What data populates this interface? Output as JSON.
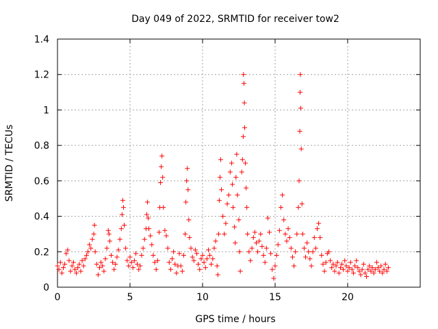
{
  "chart_data": {
    "type": "scatter",
    "title": "Day 049 of 2022, SRMTID for receiver tow2",
    "xlabel": "GPS time / hours",
    "ylabel": "SRMTID / TECUs",
    "xlim": [
      0,
      25
    ],
    "ylim": [
      0,
      1.4
    ],
    "xticks": [
      0,
      5,
      10,
      15,
      20
    ],
    "yticks": [
      0,
      0.2,
      0.4,
      0.6,
      0.8,
      1,
      1.2,
      1.4
    ],
    "xtick_labels": [
      "0",
      "5",
      "10",
      "15",
      "20"
    ],
    "ytick_labels": [
      "0",
      "0.2",
      "0.4",
      "0.6",
      "0.8",
      "1",
      "1.2",
      "1.4"
    ],
    "grid": true,
    "marker": "+",
    "color": "#ff0000",
    "series": [
      {
        "name": "SRMTID",
        "points": [
          [
            0.0,
            0.12
          ],
          [
            0.1,
            0.1
          ],
          [
            0.2,
            0.14
          ],
          [
            0.3,
            0.08
          ],
          [
            0.4,
            0.11
          ],
          [
            0.5,
            0.13
          ],
          [
            0.6,
            0.19
          ],
          [
            0.7,
            0.21
          ],
          [
            0.8,
            0.15
          ],
          [
            0.9,
            0.09
          ],
          [
            1.0,
            0.12
          ],
          [
            1.1,
            0.14
          ],
          [
            1.2,
            0.1
          ],
          [
            1.3,
            0.08
          ],
          [
            1.4,
            0.11
          ],
          [
            1.5,
            0.13
          ],
          [
            1.6,
            0.09
          ],
          [
            1.7,
            0.15
          ],
          [
            1.8,
            0.12
          ],
          [
            1.9,
            0.16
          ],
          [
            2.0,
            0.18
          ],
          [
            2.1,
            0.2
          ],
          [
            2.2,
            0.24
          ],
          [
            2.3,
            0.22
          ],
          [
            2.4,
            0.27
          ],
          [
            2.5,
            0.3
          ],
          [
            2.55,
            0.35
          ],
          [
            2.6,
            0.2
          ],
          [
            2.7,
            0.13
          ],
          [
            2.8,
            0.07
          ],
          [
            2.9,
            0.11
          ],
          [
            3.0,
            0.14
          ],
          [
            3.1,
            0.12
          ],
          [
            3.2,
            0.09
          ],
          [
            3.3,
            0.16
          ],
          [
            3.4,
            0.22
          ],
          [
            3.5,
            0.32
          ],
          [
            3.55,
            0.3
          ],
          [
            3.6,
            0.26
          ],
          [
            3.7,
            0.18
          ],
          [
            3.8,
            0.14
          ],
          [
            3.9,
            0.1
          ],
          [
            4.0,
            0.13
          ],
          [
            4.1,
            0.17
          ],
          [
            4.2,
            0.21
          ],
          [
            4.3,
            0.27
          ],
          [
            4.4,
            0.33
          ],
          [
            4.45,
            0.41
          ],
          [
            4.5,
            0.49
          ],
          [
            4.55,
            0.45
          ],
          [
            4.6,
            0.35
          ],
          [
            4.7,
            0.22
          ],
          [
            4.8,
            0.15
          ],
          [
            4.9,
            0.12
          ],
          [
            5.0,
            0.17
          ],
          [
            5.1,
            0.14
          ],
          [
            5.2,
            0.11
          ],
          [
            5.3,
            0.15
          ],
          [
            5.4,
            0.19
          ],
          [
            5.5,
            0.13
          ],
          [
            5.6,
            0.1
          ],
          [
            5.7,
            0.12
          ],
          [
            5.8,
            0.18
          ],
          [
            5.9,
            0.22
          ],
          [
            6.0,
            0.27
          ],
          [
            6.1,
            0.33
          ],
          [
            6.15,
            0.41
          ],
          [
            6.2,
            0.48
          ],
          [
            6.25,
            0.39
          ],
          [
            6.3,
            0.33
          ],
          [
            6.4,
            0.29
          ],
          [
            6.5,
            0.24
          ],
          [
            6.6,
            0.18
          ],
          [
            6.7,
            0.14
          ],
          [
            6.8,
            0.1
          ],
          [
            6.9,
            0.15
          ],
          [
            7.0,
            0.31
          ],
          [
            7.05,
            0.45
          ],
          [
            7.1,
            0.59
          ],
          [
            7.15,
            0.68
          ],
          [
            7.2,
            0.74
          ],
          [
            7.25,
            0.62
          ],
          [
            7.3,
            0.45
          ],
          [
            7.4,
            0.32
          ],
          [
            7.5,
            0.29
          ],
          [
            7.6,
            0.22
          ],
          [
            7.7,
            0.14
          ],
          [
            7.8,
            0.1
          ],
          [
            7.9,
            0.16
          ],
          [
            8.0,
            0.2
          ],
          [
            8.1,
            0.13
          ],
          [
            8.2,
            0.08
          ],
          [
            8.3,
            0.12
          ],
          [
            8.4,
            0.19
          ],
          [
            8.5,
            0.12
          ],
          [
            8.6,
            0.09
          ],
          [
            8.7,
            0.18
          ],
          [
            8.8,
            0.3
          ],
          [
            8.85,
            0.48
          ],
          [
            8.9,
            0.6
          ],
          [
            8.95,
            0.67
          ],
          [
            9.0,
            0.55
          ],
          [
            9.05,
            0.38
          ],
          [
            9.1,
            0.28
          ],
          [
            9.2,
            0.22
          ],
          [
            9.3,
            0.17
          ],
          [
            9.4,
            0.15
          ],
          [
            9.5,
            0.21
          ],
          [
            9.6,
            0.19
          ],
          [
            9.7,
            0.13
          ],
          [
            9.8,
            0.1
          ],
          [
            9.9,
            0.16
          ],
          [
            10.0,
            0.18
          ],
          [
            10.1,
            0.14
          ],
          [
            10.2,
            0.11
          ],
          [
            10.3,
            0.16
          ],
          [
            10.4,
            0.21
          ],
          [
            10.5,
            0.18
          ],
          [
            10.6,
            0.13
          ],
          [
            10.7,
            0.16
          ],
          [
            10.8,
            0.22
          ],
          [
            10.9,
            0.26
          ],
          [
            11.0,
            0.12
          ],
          [
            11.05,
            0.07
          ],
          [
            11.1,
            0.3
          ],
          [
            11.15,
            0.49
          ],
          [
            11.2,
            0.62
          ],
          [
            11.25,
            0.72
          ],
          [
            11.3,
            0.55
          ],
          [
            11.4,
            0.4
          ],
          [
            11.5,
            0.3
          ],
          [
            11.6,
            0.36
          ],
          [
            11.7,
            0.47
          ],
          [
            11.8,
            0.52
          ],
          [
            11.9,
            0.65
          ],
          [
            12.0,
            0.7
          ],
          [
            12.05,
            0.58
          ],
          [
            12.1,
            0.45
          ],
          [
            12.2,
            0.34
          ],
          [
            12.25,
            0.25
          ],
          [
            12.3,
            0.62
          ],
          [
            12.35,
            0.75
          ],
          [
            12.4,
            0.52
          ],
          [
            12.5,
            0.38
          ],
          [
            12.55,
            0.2
          ],
          [
            12.6,
            0.09
          ],
          [
            12.7,
            0.65
          ],
          [
            12.75,
            0.72
          ],
          [
            12.8,
            0.85
          ],
          [
            12.82,
            1.2
          ],
          [
            12.85,
            1.15
          ],
          [
            12.88,
            1.04
          ],
          [
            12.9,
            0.9
          ],
          [
            12.95,
            0.7
          ],
          [
            13.0,
            0.56
          ],
          [
            13.05,
            0.45
          ],
          [
            13.1,
            0.3
          ],
          [
            13.2,
            0.2
          ],
          [
            13.3,
            0.15
          ],
          [
            13.4,
            0.22
          ],
          [
            13.5,
            0.28
          ],
          [
            13.6,
            0.31
          ],
          [
            13.7,
            0.25
          ],
          [
            13.8,
            0.2
          ],
          [
            13.9,
            0.26
          ],
          [
            14.0,
            0.3
          ],
          [
            14.1,
            0.23
          ],
          [
            14.2,
            0.18
          ],
          [
            14.3,
            0.14
          ],
          [
            14.4,
            0.22
          ],
          [
            14.5,
            0.39
          ],
          [
            14.6,
            0.31
          ],
          [
            14.7,
            0.19
          ],
          [
            14.8,
            0.1
          ],
          [
            14.9,
            0.05
          ],
          [
            15.0,
            0.12
          ],
          [
            15.1,
            0.18
          ],
          [
            15.2,
            0.24
          ],
          [
            15.3,
            0.32
          ],
          [
            15.4,
            0.45
          ],
          [
            15.5,
            0.52
          ],
          [
            15.6,
            0.38
          ],
          [
            15.7,
            0.3
          ],
          [
            15.8,
            0.26
          ],
          [
            15.9,
            0.33
          ],
          [
            16.0,
            0.28
          ],
          [
            16.1,
            0.22
          ],
          [
            16.2,
            0.17
          ],
          [
            16.3,
            0.12
          ],
          [
            16.4,
            0.2
          ],
          [
            16.5,
            0.3
          ],
          [
            16.6,
            0.45
          ],
          [
            16.65,
            0.6
          ],
          [
            16.7,
            0.88
          ],
          [
            16.72,
            1.1
          ],
          [
            16.74,
            1.2
          ],
          [
            16.76,
            1.01
          ],
          [
            16.8,
            0.78
          ],
          [
            16.85,
            0.47
          ],
          [
            16.9,
            0.3
          ],
          [
            17.0,
            0.22
          ],
          [
            17.1,
            0.17
          ],
          [
            17.2,
            0.25
          ],
          [
            17.3,
            0.2
          ],
          [
            17.4,
            0.16
          ],
          [
            17.5,
            0.12
          ],
          [
            17.6,
            0.2
          ],
          [
            17.7,
            0.28
          ],
          [
            17.8,
            0.22
          ],
          [
            17.9,
            0.33
          ],
          [
            18.0,
            0.36
          ],
          [
            18.1,
            0.28
          ],
          [
            18.2,
            0.18
          ],
          [
            18.3,
            0.13
          ],
          [
            18.4,
            0.09
          ],
          [
            18.5,
            0.14
          ],
          [
            18.6,
            0.19
          ],
          [
            18.7,
            0.2
          ],
          [
            18.8,
            0.15
          ],
          [
            18.9,
            0.11
          ],
          [
            19.0,
            0.13
          ],
          [
            19.1,
            0.09
          ],
          [
            19.2,
            0.12
          ],
          [
            19.3,
            0.14
          ],
          [
            19.4,
            0.08
          ],
          [
            19.5,
            0.11
          ],
          [
            19.6,
            0.13
          ],
          [
            19.7,
            0.1
          ],
          [
            19.8,
            0.15
          ],
          [
            19.9,
            0.12
          ],
          [
            20.0,
            0.09
          ],
          [
            20.1,
            0.11
          ],
          [
            20.2,
            0.14
          ],
          [
            20.3,
            0.1
          ],
          [
            20.4,
            0.08
          ],
          [
            20.5,
            0.12
          ],
          [
            20.6,
            0.15
          ],
          [
            20.7,
            0.11
          ],
          [
            20.8,
            0.09
          ],
          [
            20.9,
            0.07
          ],
          [
            21.0,
            0.1
          ],
          [
            21.1,
            0.13
          ],
          [
            21.2,
            0.08
          ],
          [
            21.3,
            0.06
          ],
          [
            21.4,
            0.1
          ],
          [
            21.5,
            0.12
          ],
          [
            21.6,
            0.09
          ],
          [
            21.7,
            0.11
          ],
          [
            21.8,
            0.08
          ],
          [
            21.9,
            0.1
          ],
          [
            22.0,
            0.14
          ],
          [
            22.1,
            0.11
          ],
          [
            22.2,
            0.09
          ],
          [
            22.3,
            0.12
          ],
          [
            22.4,
            0.08
          ],
          [
            22.5,
            0.1
          ],
          [
            22.6,
            0.13
          ],
          [
            22.7,
            0.09
          ],
          [
            22.8,
            0.11
          ]
        ]
      }
    ]
  }
}
